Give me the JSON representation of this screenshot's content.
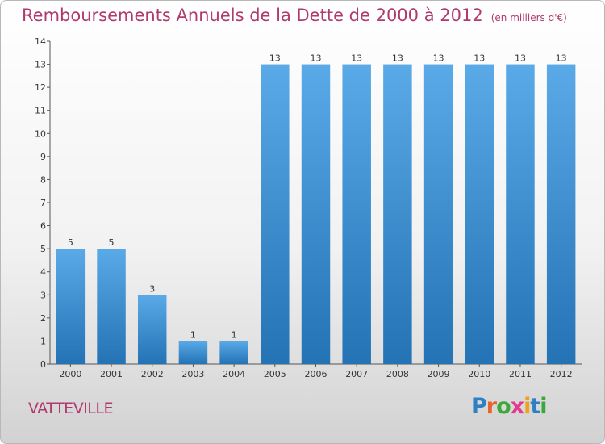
{
  "header": {
    "title": "Remboursements Annuels de la Dette de 2000 à 2012",
    "unit": "(en milliers d'€)"
  },
  "footer": {
    "commune": "VATTEVILLE",
    "logo_text": "Proxiti",
    "logo_colors": [
      "#2e7fc4",
      "#e8632a",
      "#3da83a",
      "#e23a8c",
      "#f0a11b",
      "#2e7fc4",
      "#3da83a"
    ]
  },
  "colors": {
    "bar_top": "#5aaae8",
    "bar_bottom": "#2373b5",
    "title": "#b03a6e"
  },
  "chart_data": {
    "type": "bar",
    "title": "Remboursements Annuels de la Dette de 2000 à 2012",
    "subtitle": "(en milliers d'€)",
    "categories": [
      "2000",
      "2001",
      "2002",
      "2003",
      "2004",
      "2005",
      "2006",
      "2007",
      "2008",
      "2009",
      "2010",
      "2011",
      "2012"
    ],
    "values": [
      5,
      5,
      3,
      1,
      1,
      13,
      13,
      13,
      13,
      13,
      13,
      13,
      13
    ],
    "ylim": [
      0,
      14
    ],
    "yticks": [
      0,
      1,
      2,
      3,
      4,
      5,
      6,
      7,
      8,
      9,
      10,
      11,
      12,
      13,
      14
    ],
    "grid": false,
    "legend": "none"
  }
}
